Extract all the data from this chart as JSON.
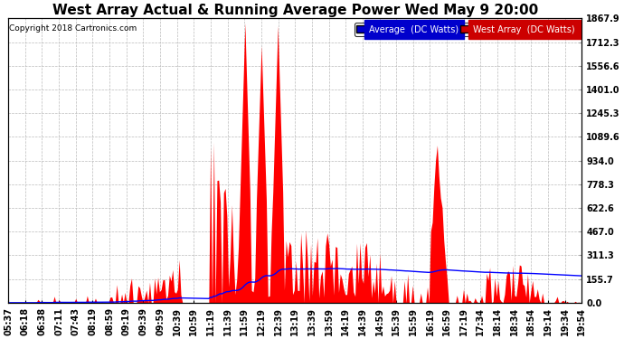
{
  "title": "West Array Actual & Running Average Power Wed May 9 20:00",
  "copyright": "Copyright 2018 Cartronics.com",
  "yticks": [
    0.0,
    155.7,
    311.3,
    467.0,
    622.6,
    778.3,
    934.0,
    1089.6,
    1245.3,
    1401.0,
    1556.6,
    1712.3,
    1867.9
  ],
  "ymax": 1867.9,
  "legend_labels": [
    "Average  (DC Watts)",
    "West Array  (DC Watts)"
  ],
  "legend_colors": [
    "#0000cc",
    "#cc0000"
  ],
  "bar_color": "#ff0000",
  "line_color": "#0000ff",
  "background_color": "#ffffff",
  "grid_color": "#bbbbbb",
  "title_fontsize": 11,
  "tick_fontsize": 7,
  "xtick_labels": [
    "05:37",
    "06:18",
    "06:38",
    "07:11",
    "07:43",
    "08:19",
    "08:59",
    "09:19",
    "09:39",
    "09:59",
    "10:39",
    "10:59",
    "11:19",
    "11:39",
    "11:59",
    "12:19",
    "12:39",
    "13:19",
    "13:39",
    "13:59",
    "14:19",
    "14:39",
    "14:59",
    "15:39",
    "15:59",
    "16:19",
    "16:59",
    "17:19",
    "17:34",
    "18:14",
    "18:34",
    "18:54",
    "19:14",
    "19:34",
    "19:54"
  ]
}
